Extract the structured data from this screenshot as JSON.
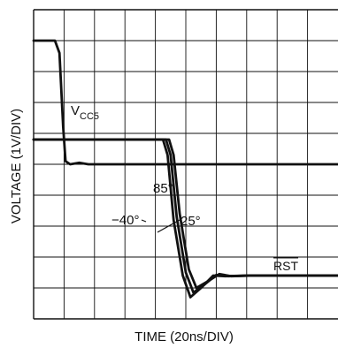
{
  "chart_data": {
    "type": "line",
    "title": "",
    "xlabel": "TIME (20ns/DIV)",
    "ylabel": "VOLTAGE (1V/DIV)",
    "grid": true,
    "x_divisions": 10,
    "y_divisions": 10,
    "xlim": [
      0,
      10
    ],
    "ylim": [
      0,
      10
    ],
    "series": [
      {
        "name": "VCC5",
        "x": [
          0.0,
          0.7,
          0.85,
          0.97,
          1.05,
          1.2,
          1.5,
          1.8,
          2.2,
          10.0
        ],
        "y": [
          9.0,
          9.0,
          8.6,
          6.2,
          5.1,
          5.0,
          5.05,
          5.0,
          5.0,
          5.0
        ]
      },
      {
        "name": "85°",
        "x": [
          0.0,
          4.45,
          4.6,
          4.8,
          5.1,
          5.35,
          5.7,
          6.1,
          6.5,
          7.2,
          10.0
        ],
        "y": [
          5.8,
          5.8,
          5.3,
          3.4,
          1.6,
          1.0,
          1.2,
          1.45,
          1.38,
          1.4,
          1.4
        ]
      },
      {
        "name": "25°",
        "x": [
          0.0,
          4.35,
          4.5,
          4.7,
          5.0,
          5.25,
          5.6,
          6.0,
          6.4,
          7.1,
          10.0
        ],
        "y": [
          5.8,
          5.8,
          5.3,
          3.3,
          1.5,
          0.85,
          1.1,
          1.42,
          1.38,
          1.4,
          1.4
        ]
      },
      {
        "name": "−40°",
        "x": [
          0.0,
          4.25,
          4.4,
          4.6,
          4.9,
          5.15,
          5.5,
          5.9,
          6.3,
          7.0,
          10.0
        ],
        "y": [
          5.8,
          5.8,
          5.3,
          3.2,
          1.4,
          0.7,
          1.0,
          1.4,
          1.38,
          1.4,
          1.4
        ]
      }
    ],
    "annotations": [
      {
        "text": "V",
        "sub": "CC5"
      },
      {
        "text": "85°"
      },
      {
        "text": "25°"
      },
      {
        "text": "−40°"
      },
      {
        "text": "RST",
        "overline": true
      }
    ]
  }
}
